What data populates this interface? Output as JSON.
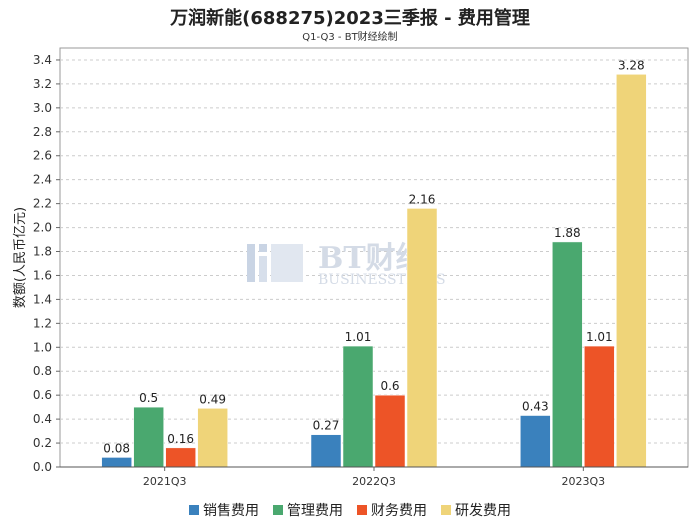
{
  "chart_data": {
    "type": "bar",
    "title": "万润新能(688275)2023三季报 - 费用管理",
    "subtitle": "Q1-Q3 - BT财经绘制",
    "xlabel": "",
    "ylabel": "数额(人民币亿元)",
    "ylim": [
      0,
      3.5
    ],
    "yticks": [
      "0.0",
      "0.2",
      "0.4",
      "0.6",
      "0.8",
      "1.0",
      "1.2",
      "1.4",
      "1.6",
      "1.8",
      "2.0",
      "2.2",
      "2.4",
      "2.6",
      "2.8",
      "3.0",
      "3.2",
      "3.4"
    ],
    "categories": [
      "2021Q3",
      "2022Q3",
      "2023Q3"
    ],
    "series": [
      {
        "name": "销售费用",
        "color": "#3a81bd",
        "values": [
          0.08,
          0.27,
          0.43
        ],
        "labels": [
          "0.08",
          "0.27",
          "0.43"
        ]
      },
      {
        "name": "管理费用",
        "color": "#4aa86f",
        "values": [
          0.5,
          1.01,
          1.88
        ],
        "labels": [
          "0.5",
          "1.01",
          "1.88"
        ]
      },
      {
        "name": "财务费用",
        "color": "#ed5427",
        "values": [
          0.16,
          0.6,
          1.01
        ],
        "labels": [
          "0.16",
          "0.6",
          "1.01"
        ]
      },
      {
        "name": "研发费用",
        "color": "#efd479",
        "values": [
          0.49,
          2.16,
          3.28
        ],
        "labels": [
          "0.49",
          "2.16",
          "3.28"
        ]
      }
    ],
    "grid": true,
    "legend_position": "bottom"
  },
  "watermark": {
    "main": "BT财经",
    "sub": "BUSINESSTIMES"
  }
}
